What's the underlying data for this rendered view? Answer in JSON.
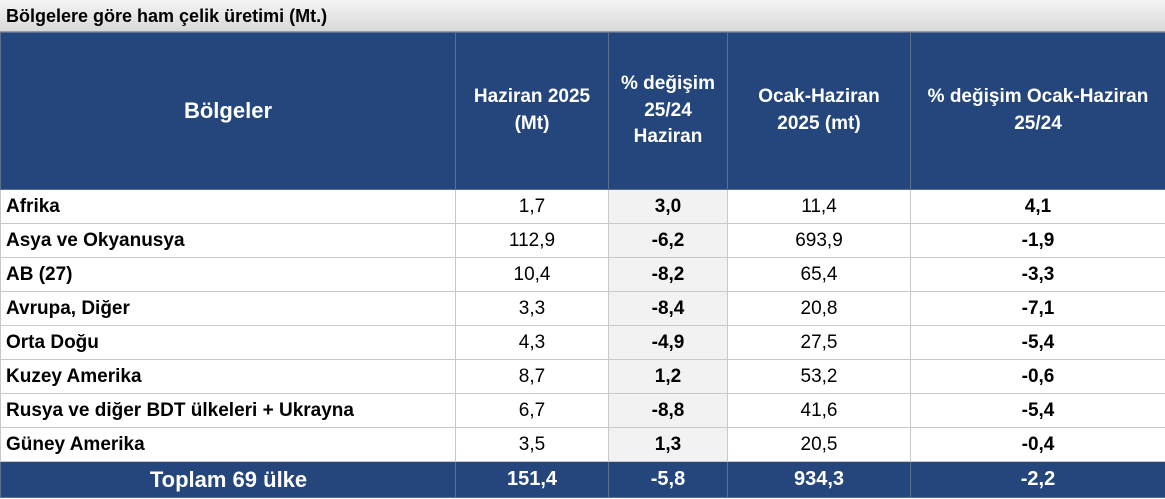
{
  "title": "Bölgelere göre ham çelik üretimi (Mt.)",
  "table": {
    "header": [
      "Bölgeler",
      "Haziran 2025 (Mt)",
      "% değişim 25/24 Haziran",
      "Ocak-Haziran 2025 (mt)",
      "% değişim Ocak-Haziran 25/24"
    ],
    "rows": [
      [
        "Afrika",
        "1,7",
        "3,0",
        "11,4",
        "4,1"
      ],
      [
        "Asya ve Okyanusya",
        "112,9",
        "-6,2",
        "693,9",
        "-1,9"
      ],
      [
        "AB (27)",
        "10,4",
        "-8,2",
        "65,4",
        "-3,3"
      ],
      [
        "Avrupa, Diğer",
        "3,3",
        "-8,4",
        "20,8",
        "-7,1"
      ],
      [
        "Orta Doğu",
        "4,3",
        "-4,9",
        "27,5",
        "-5,4"
      ],
      [
        "Kuzey Amerika",
        "8,7",
        "1,2",
        "53,2",
        "-0,6"
      ],
      [
        "Rusya ve diğer BDT ülkeleri + Ukrayna",
        "6,7",
        "-8,8",
        "41,6",
        "-5,4"
      ],
      [
        "Güney Amerika",
        "3,5",
        "1,3",
        "20,5",
        "-0,4"
      ]
    ],
    "total": [
      "Toplam 69 ülke",
      "151,4",
      "-5,8",
      "934,3",
      "-2,2"
    ]
  }
}
